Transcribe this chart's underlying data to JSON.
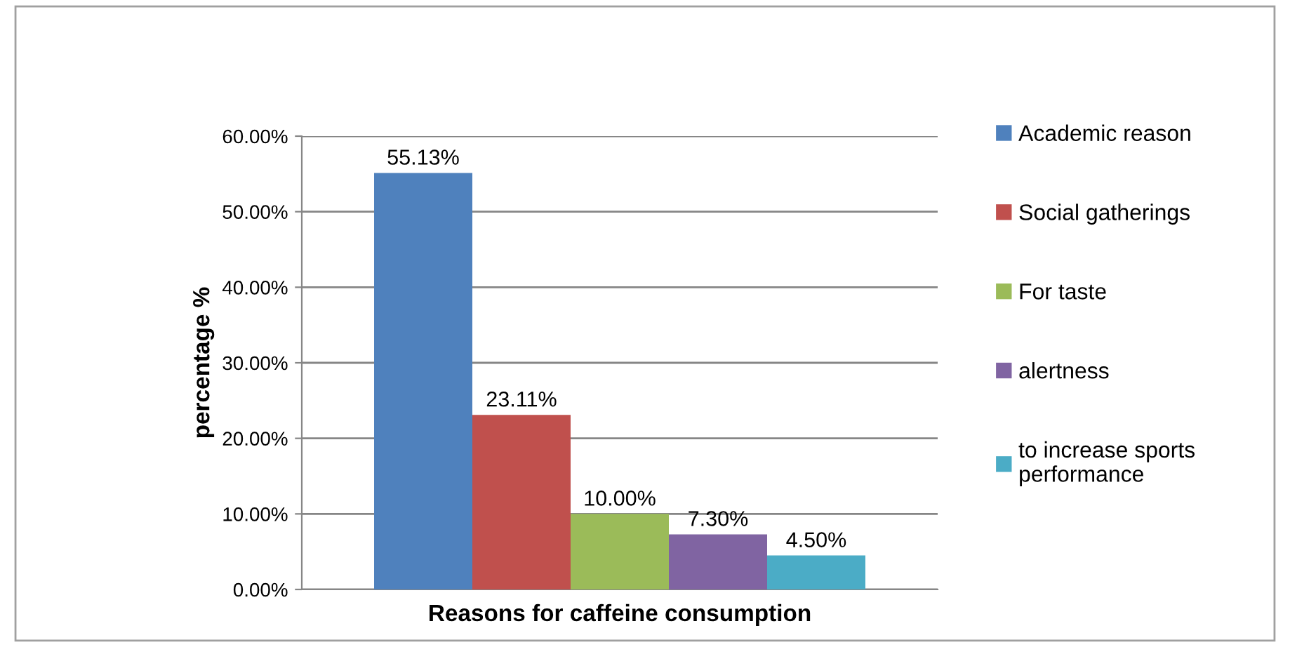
{
  "chart_data": {
    "type": "bar",
    "xlabel": "Reasons for caffeine consumption",
    "ylabel": "percentage %",
    "categories": [
      null
    ],
    "series": [
      {
        "name": "Academic reason",
        "color": "#4f81bd",
        "values": [
          55.13
        ],
        "value_labels": [
          "55.13%"
        ]
      },
      {
        "name": "Social gatherings",
        "color": "#c0504d",
        "values": [
          23.11
        ],
        "value_labels": [
          "23.11%"
        ]
      },
      {
        "name": "For taste",
        "color": "#9bbb59",
        "values": [
          10.0
        ],
        "value_labels": [
          "10.00%"
        ]
      },
      {
        "name": "alertness",
        "color": "#8064a2",
        "values": [
          7.3
        ],
        "value_labels": [
          "7.30%"
        ]
      },
      {
        "name": "to increase sports\nperformance",
        "color": "#4bacc6",
        "values": [
          4.5
        ],
        "value_labels": [
          "4.50%"
        ]
      }
    ],
    "ylim": [
      0,
      60
    ],
    "yticks": [
      {
        "value": 0,
        "label": "0.00%"
      },
      {
        "value": 10,
        "label": "10.00%"
      },
      {
        "value": 20,
        "label": "20.00%"
      },
      {
        "value": 30,
        "label": "30.00%"
      },
      {
        "value": 40,
        "label": "40.00%"
      },
      {
        "value": 50,
        "label": "50.00%"
      },
      {
        "value": 60,
        "label": "60.00%"
      }
    ],
    "grid": "y",
    "legend": "right"
  }
}
